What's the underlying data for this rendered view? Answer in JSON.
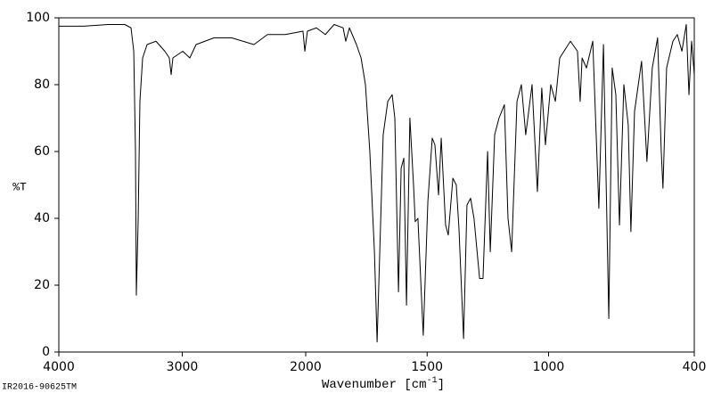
{
  "chart_data": {
    "type": "line",
    "ylabel": "%T",
    "xlabel": [
      "Wavenumber [cm",
      "-1",
      "]"
    ],
    "footer": "IR2016-90625TM",
    "xlim": [
      4000,
      400
    ],
    "xscale_break": 2000,
    "xticks": [
      4000,
      3000,
      2000,
      1500,
      1000,
      400
    ],
    "ylim": [
      0,
      100
    ],
    "yticks": [
      0,
      20,
      40,
      60,
      80,
      100
    ],
    "x": [
      4000,
      3800,
      3600,
      3466,
      3415,
      3393,
      3379,
      3372,
      3357,
      3343,
      3321,
      3285,
      3213,
      3141,
      3105,
      3090,
      3076,
      2996,
      2939,
      2888,
      2744,
      2599,
      2419,
      2310,
      2166,
      2022,
      2007,
      1993,
      1956,
      1919,
      1883,
      1846,
      1835,
      1820,
      1791,
      1772,
      1754,
      1736,
      1717,
      1706,
      1695,
      1681,
      1662,
      1644,
      1633,
      1618,
      1607,
      1596,
      1585,
      1571,
      1556,
      1549,
      1538,
      1516,
      1497,
      1479,
      1468,
      1453,
      1442,
      1424,
      1413,
      1394,
      1380,
      1369,
      1350,
      1336,
      1321,
      1307,
      1284,
      1270,
      1251,
      1240,
      1222,
      1204,
      1182,
      1167,
      1152,
      1130,
      1112,
      1094,
      1068,
      1046,
      1028,
      1013,
      991,
      972,
      954,
      910,
      881,
      870,
      862,
      844,
      818,
      793,
      774,
      752,
      738,
      723,
      708,
      690,
      672,
      661,
      646,
      617,
      595,
      573,
      551,
      536,
      529,
      514,
      488,
      470,
      451,
      433,
      422,
      411,
      400
    ],
    "series": [
      {
        "color": "#000000",
        "values": [
          97.5,
          97.5,
          98,
          98,
          97,
          90,
          60,
          17,
          40,
          75,
          88,
          92,
          93,
          90,
          88,
          83,
          88,
          90,
          88,
          92,
          94,
          94,
          92,
          95,
          95,
          96,
          90,
          96,
          97,
          95,
          98,
          97,
          93,
          97,
          92,
          88,
          80,
          60,
          30,
          3,
          30,
          65,
          75,
          77,
          70,
          18,
          55,
          58,
          14,
          70,
          50,
          39,
          40,
          5,
          45,
          64,
          62,
          47,
          64,
          38,
          35,
          52,
          50,
          37,
          4,
          44,
          46,
          40,
          22,
          22,
          60,
          30,
          65,
          70,
          74,
          40,
          30,
          75,
          80,
          65,
          80,
          48,
          79,
          62,
          80,
          75,
          88,
          93,
          90,
          75,
          88,
          85,
          93,
          43,
          92,
          10,
          85,
          77,
          38,
          80,
          68,
          36,
          72,
          87,
          57,
          85,
          94,
          60,
          49,
          85,
          93,
          95,
          90,
          98,
          77,
          93,
          83
        ]
      }
    ]
  }
}
